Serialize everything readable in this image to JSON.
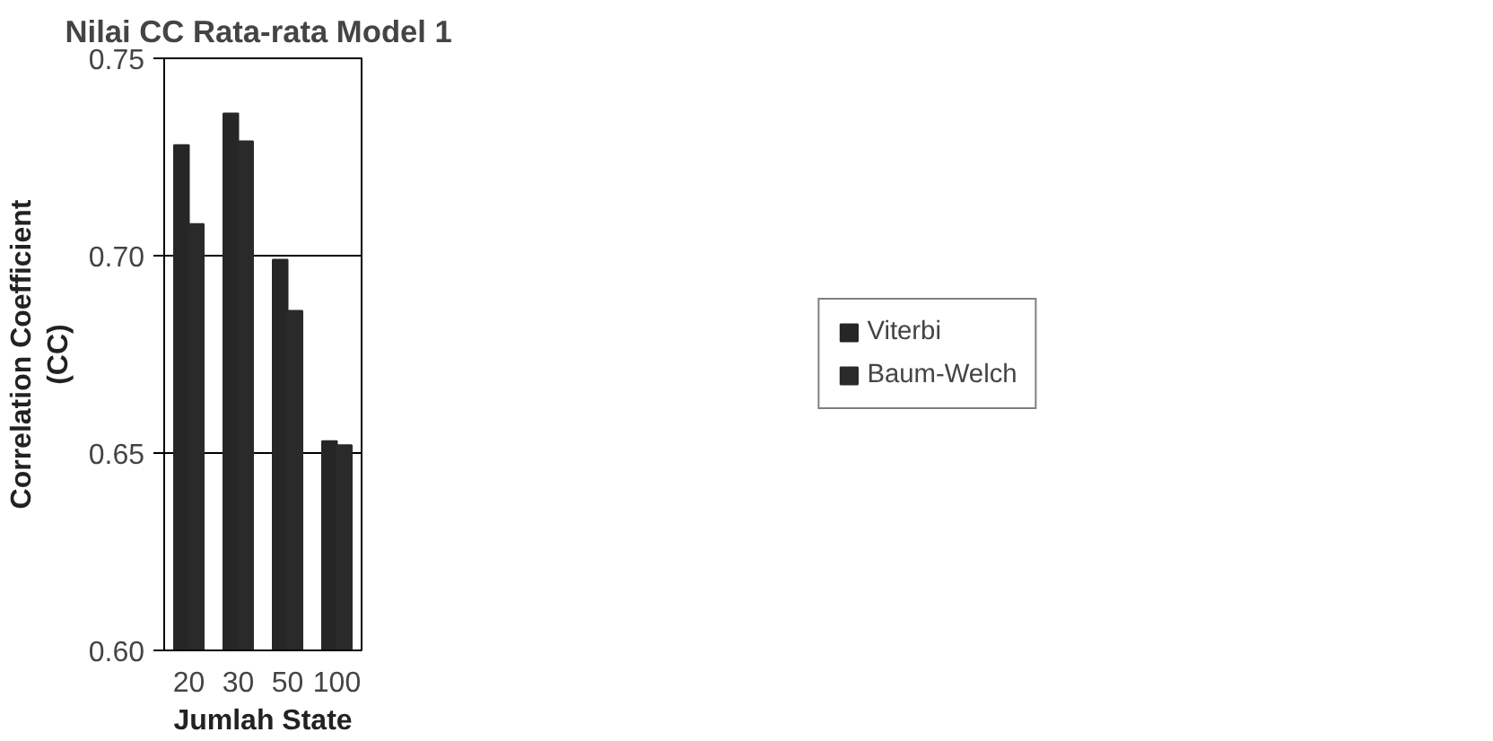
{
  "chart_data": {
    "type": "bar",
    "title": "Nilai CC  Rata-rata Model 1",
    "xlabel": "Jumlah State",
    "ylabel": "Correlation Coefficient\n(CC)",
    "categories": [
      "20",
      "30",
      "50",
      "100"
    ],
    "series": [
      {
        "name": "Viterbi",
        "color": "#262626",
        "values": [
          0.728,
          0.736,
          0.699,
          0.653
        ]
      },
      {
        "name": "Baum-Welch",
        "color": "#2a2a2a",
        "values": [
          0.708,
          0.729,
          0.686,
          0.652
        ]
      }
    ],
    "ylim": [
      0.6,
      0.75
    ],
    "yticks": [
      {
        "value": 0.6,
        "label": "0.60"
      },
      {
        "value": 0.65,
        "label": "0.65"
      },
      {
        "value": 0.7,
        "label": "0.70"
      },
      {
        "value": 0.75,
        "label": "0.75"
      }
    ],
    "grid": "y",
    "legend": "right"
  }
}
